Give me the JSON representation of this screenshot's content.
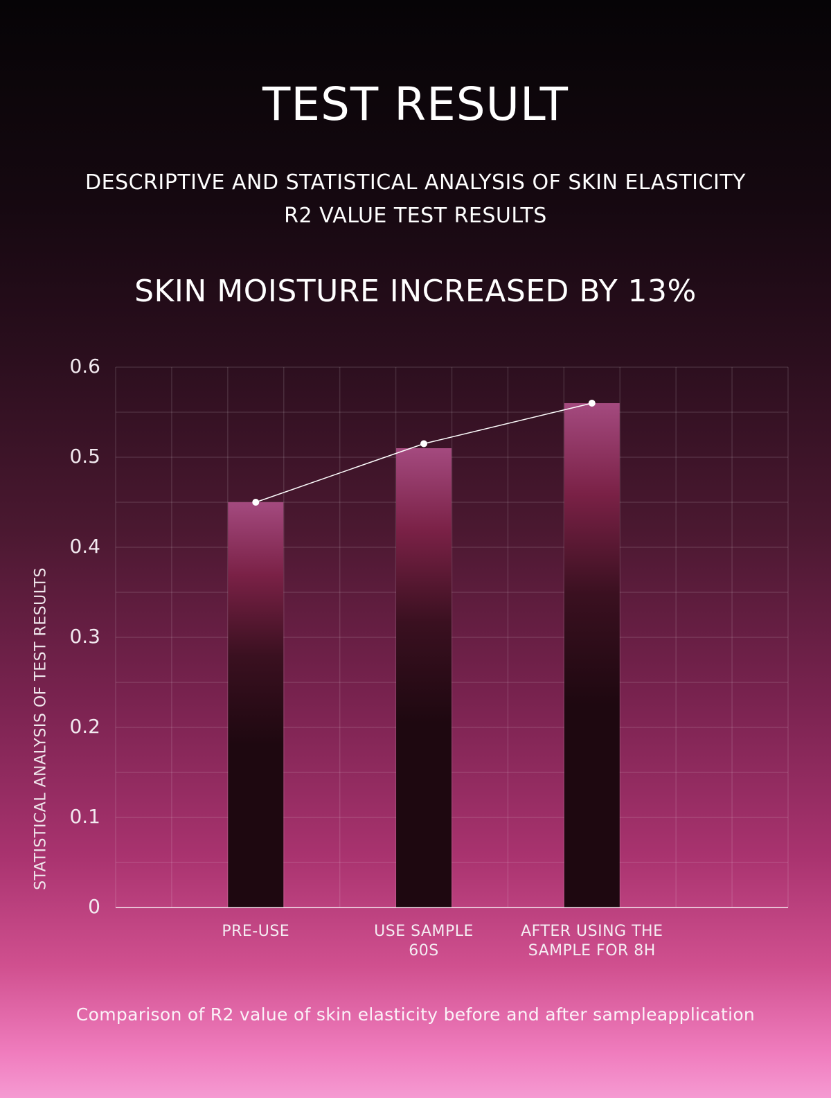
{
  "header": {
    "title": "TEST RESULT",
    "subtitle_line1": "DESCRIPTIVE AND STATISTICAL ANALYSIS OF SKIN ELASTICITY",
    "subtitle_line2": "R2 VALUE TEST RESULTS",
    "headline": "SKIN MOISTURE INCREASED BY 13%"
  },
  "chart_data": {
    "type": "bar",
    "title": "SKIN MOISTURE INCREASED BY 13%",
    "xlabel": "",
    "ylabel": "STATISTICAL ANALYSIS OF TEST RESULTS",
    "ylim": [
      0,
      0.6
    ],
    "yticks": [
      "0",
      "0.1",
      "0.2",
      "0.3",
      "0.4",
      "0.5",
      "0.6"
    ],
    "categories": [
      {
        "line1": "PRE-USE",
        "line2": ""
      },
      {
        "line1": "USE SAMPLE",
        "line2": "60S"
      },
      {
        "line1": "AFTER USING THE",
        "line2": "SAMPLE FOR 8H"
      }
    ],
    "values": [
      0.45,
      0.51,
      0.56
    ],
    "line_series": [
      0.45,
      0.515,
      0.56
    ],
    "grid": true,
    "legend": "none"
  },
  "caption": "Comparison of R2 value of skin elasticity before and after sampleapplication",
  "colors": {
    "bar_top": "#a44a7f",
    "bar_mid": "#7a2146",
    "bar_bottom": "#1e0810",
    "line": "#ffffff",
    "grid": "#ffffff"
  }
}
